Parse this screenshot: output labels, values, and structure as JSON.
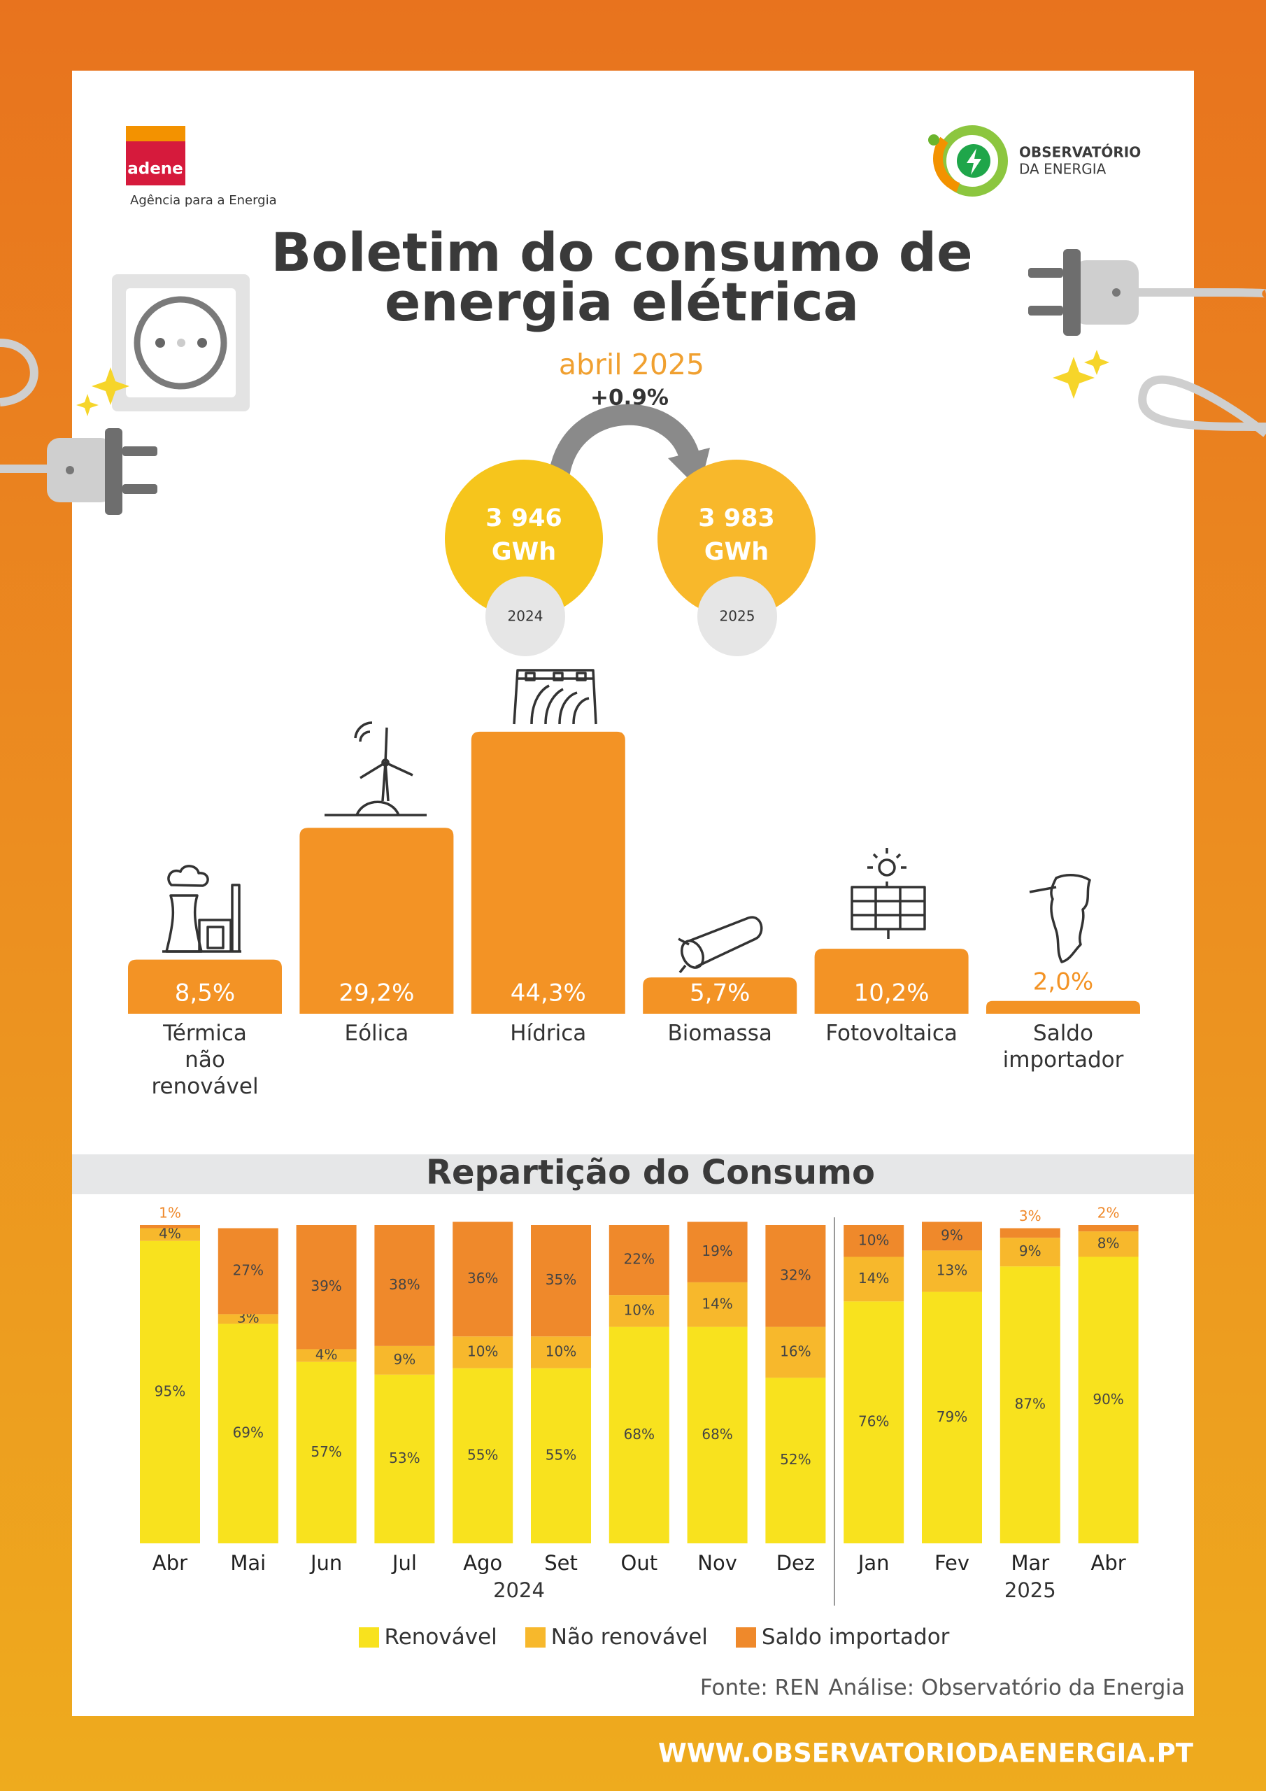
{
  "header": {
    "logo_left": "adene",
    "logo_left_tagline": "Agência para a Energia",
    "logo_right": [
      "OBSERVATÓRIO",
      "DA ENERGIA"
    ],
    "title": [
      "Boletim do consumo de",
      "energia elétrica"
    ],
    "period": "abril 2025",
    "change": "+0,9%"
  },
  "totals": [
    {
      "value": "3 946",
      "unit": "GWh",
      "year": "2024"
    },
    {
      "value": "3 983",
      "unit": "GWh",
      "year": "2025"
    }
  ],
  "chart_data": [
    {
      "type": "bar",
      "categories": [
        "Térmica não renovável",
        "Eólica",
        "Hídrica",
        "Biomassa",
        "Fotovoltaica",
        "Saldo importador"
      ],
      "values": [
        8.5,
        29.2,
        44.3,
        5.7,
        10.2,
        2.0
      ],
      "value_labels": [
        "8,5%",
        "29,2%",
        "44,3%",
        "5,7%",
        "10,2%",
        "2,0%"
      ],
      "color": "#f39325"
    },
    {
      "type": "stacked_bar",
      "title": "Repartição do Consumo",
      "categories": [
        "Abr",
        "Mai",
        "Jun",
        "Jul",
        "Ago",
        "Set",
        "Out",
        "Nov",
        "Dez",
        "Jan",
        "Fev",
        "Mar",
        "Abr"
      ],
      "groups": [
        "2024",
        "2025"
      ],
      "series": [
        {
          "name": "Renovável",
          "color": "#f8e21e",
          "values": [
            95,
            69,
            57,
            53,
            55,
            55,
            68,
            68,
            52,
            76,
            79,
            87,
            90
          ],
          "value_labels": [
            "95%",
            "69%",
            "57%",
            "53%",
            "55%",
            "55%",
            "68%",
            "68%",
            "52%",
            "76%",
            "79%",
            "87%",
            "90%"
          ]
        },
        {
          "name": "Não renovável",
          "color": "#f7b82c",
          "values": [
            4,
            3,
            4,
            9,
            10,
            10,
            10,
            14,
            16,
            14,
            13,
            9,
            8
          ],
          "value_labels": [
            "4%",
            "3%",
            "4%",
            "9%",
            "10%",
            "10%",
            "10%",
            "14%",
            "16%",
            "14%",
            "13%",
            "9%",
            "8%"
          ]
        },
        {
          "name": "Saldo importador",
          "color": "#ef892b",
          "values": [
            1,
            27,
            39,
            38,
            36,
            35,
            22,
            19,
            32,
            10,
            9,
            3,
            2
          ],
          "value_labels": [
            "1%",
            "27%",
            "39%",
            "38%",
            "36%",
            "35%",
            "22%",
            "19%",
            "32%",
            "10%",
            "9%",
            "3%",
            "2%"
          ]
        }
      ]
    }
  ],
  "footer": {
    "source": "Fonte: REN",
    "analysis": "Análise: Observatório da Energia",
    "url": "WWW.OBSERVATORIODAENERGIA.PT"
  }
}
